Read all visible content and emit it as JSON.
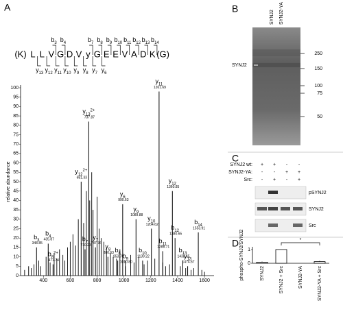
{
  "panel_labels": {
    "a": "A",
    "b": "B",
    "c": "C",
    "d": "D"
  },
  "peptide": {
    "prefix": "(K)",
    "suffix": "(G)",
    "residues": [
      "L",
      "L",
      "V",
      "G",
      "D",
      "V",
      "y",
      "G",
      "E",
      "E",
      "V",
      "A",
      "D",
      "K"
    ],
    "b_ions": [
      {
        "ion": "b",
        "sub": "3"
      },
      {
        "ion": "b",
        "sub": "4"
      },
      {
        "ion": "b",
        "sub": "7"
      },
      {
        "ion": "b",
        "sub": "8"
      },
      {
        "ion": "b",
        "sub": "9"
      },
      {
        "ion": "b",
        "sub": "10"
      },
      {
        "ion": "b",
        "sub": "11"
      },
      {
        "ion": "b",
        "sub": "12"
      },
      {
        "ion": "b",
        "sub": "13"
      },
      {
        "ion": "b",
        "sub": "14"
      }
    ],
    "y_ions": [
      {
        "ion": "y",
        "sub": "13"
      },
      {
        "ion": "y",
        "sub": "12"
      },
      {
        "ion": "y",
        "sub": "11"
      },
      {
        "ion": "y",
        "sub": "10"
      },
      {
        "ion": "y",
        "sub": "9"
      },
      {
        "ion": "y",
        "sub": "8"
      },
      {
        "ion": "y",
        "sub": "7"
      },
      {
        "ion": "y",
        "sub": "6"
      }
    ]
  },
  "chart_data": [
    {
      "type": "stem",
      "y_label": "relative abundance",
      "color": "#000000",
      "xlim": [
        230,
        1620
      ],
      "xticks": [
        400,
        600,
        800,
        1000,
        1200,
        1400,
        1600
      ],
      "ylim": [
        0,
        100
      ],
      "yticks": [
        0,
        5,
        10,
        15,
        20,
        25,
        30,
        35,
        40,
        45,
        50,
        55,
        60,
        65,
        70,
        75,
        80,
        85,
        90,
        95,
        100
      ],
      "peaks": [
        {
          "ion": "b",
          "sub": "3",
          "mz": 348.85,
          "mz_label": "348.85",
          "value": 15
        },
        {
          "ion": "b",
          "sub": "4",
          "mz": 435.87,
          "mz_label": "435.87",
          "value": 17
        },
        {
          "ion": "b",
          "sub": "8",
          "sup": "2+",
          "mz": 471.74,
          "mz_label": "471.74",
          "value": 6
        },
        {
          "ion": "y",
          "sub": "12",
          "sup": "2+",
          "mz": 681.33,
          "mz_label": "681.33",
          "value": 50
        },
        {
          "ion": "b",
          "sub": "7",
          "mz": 710.23,
          "mz_label": "710.23",
          "value": 14
        },
        {
          "ion": "y",
          "sub": "13",
          "sup": "2+",
          "mz": 737.87,
          "mz_label": "737.87",
          "value": 82
        },
        {
          "ion": "y",
          "sub": "7",
          "mz": 787.76,
          "mz_label": "787.76",
          "value": 15
        },
        {
          "ion": "y",
          "sub": "8",
          "mz": 880.63,
          "mz_label": "880.63",
          "value": 10
        },
        {
          "ion": "b",
          "sub": "8",
          "mz": 953.76,
          "mz_label": "953.76",
          "value": 8
        },
        {
          "ion": "y",
          "sub": "6",
          "mz": 990.63,
          "mz_label": "990.63",
          "value": 38
        },
        {
          "ion": "b",
          "sub": "9",
          "mz": 1010.8,
          "mz_label": "1010.80",
          "value": 5
        },
        {
          "ion": "y",
          "sub": "9",
          "mz": 1089.88,
          "mz_label": "1089.88",
          "value": 30
        },
        {
          "ion": "b",
          "sub": "10",
          "mz": 1139.22,
          "mz_label": "1139.22",
          "value": 8
        },
        {
          "ion": "y",
          "sub": "10",
          "mz": 1204.62,
          "mz_label": "1204.62",
          "value": 25
        },
        {
          "ion": "y",
          "sub": "11",
          "mz": 1261.69,
          "mz_label": "1261.69",
          "value": 98
        },
        {
          "ion": "b",
          "sub": "11",
          "mz": 1288.71,
          "mz_label": "1288.71",
          "value": 13
        },
        {
          "ion": "y",
          "sub": "12",
          "mz": 1360.85,
          "mz_label": "1360.85",
          "value": 45
        },
        {
          "ion": "b",
          "sub": "12",
          "mz": 1380.65,
          "mz_label": "1380.65",
          "value": 20
        },
        {
          "ion": "b",
          "sub": "13",
          "mz": 1438.65,
          "mz_label": "1438.65",
          "value": 8
        },
        {
          "ion": "y",
          "sub": "13",
          "mz": 1474.67,
          "mz_label": "1474.67",
          "value": 5
        },
        {
          "ion": "b",
          "sub": "14",
          "mz": 1553.91,
          "mz_label": "1553.91",
          "value": 23
        }
      ],
      "series": [
        {
          "x": [
            260,
            290,
            310,
            330,
            365,
            380,
            420,
            450,
            480,
            500,
            520,
            545,
            560,
            580,
            600,
            620,
            640,
            660,
            700,
            720,
            745,
            760,
            770,
            800,
            815,
            830,
            850,
            870,
            900,
            920,
            945,
            970,
            1010,
            1050,
            1075,
            1110,
            1150,
            1175,
            1230,
            1290,
            1310,
            1340,
            1420,
            1460,
            1500,
            1520,
            1580,
            1600
          ],
          "values": [
            3,
            5,
            4,
            6,
            8,
            5,
            10,
            7,
            12,
            9,
            14,
            11,
            8,
            15,
            18,
            22,
            16,
            30,
            28,
            45,
            40,
            55,
            35,
            42,
            25,
            20,
            18,
            15,
            12,
            10,
            9,
            14,
            8,
            11,
            7,
            10,
            6,
            8,
            9,
            7,
            5,
            6,
            5,
            4,
            3,
            4,
            3,
            2
          ]
        }
      ]
    },
    {
      "type": "bar",
      "y_label": "phospho-SYNJ2/SYNJ2",
      "color": "#ffffff",
      "categories": [
        "SYNJ2",
        "SYNJ2 + Src",
        "SYNJ2-YA",
        "SYNJ2-YA + Src"
      ],
      "values": [
        0.08,
        1.0,
        0.0,
        0.12
      ],
      "errors": [
        0.05,
        0,
        0,
        0.06
      ],
      "ylim": [
        0,
        1.2
      ],
      "yticks": [
        0,
        1
      ],
      "annotation": "*"
    }
  ],
  "gel": {
    "lane_labels": [
      "SYNJ2",
      "SYNJ2-YA"
    ],
    "band_label": "SYNJ2",
    "markers": [
      250,
      150,
      100,
      75,
      50
    ]
  },
  "blot": {
    "rows": [
      {
        "label": "SYNJ2 wt:",
        "signs": [
          "+",
          "+",
          "-",
          "-"
        ]
      },
      {
        "label": "SYNJ2-YA:",
        "signs": [
          "-",
          "-",
          "+",
          "+"
        ]
      },
      {
        "label": "Src:",
        "signs": [
          "-",
          "+",
          "-",
          "+"
        ]
      }
    ],
    "bands": [
      "pSYNJ2",
      "SYNJ2",
      "Src"
    ]
  }
}
